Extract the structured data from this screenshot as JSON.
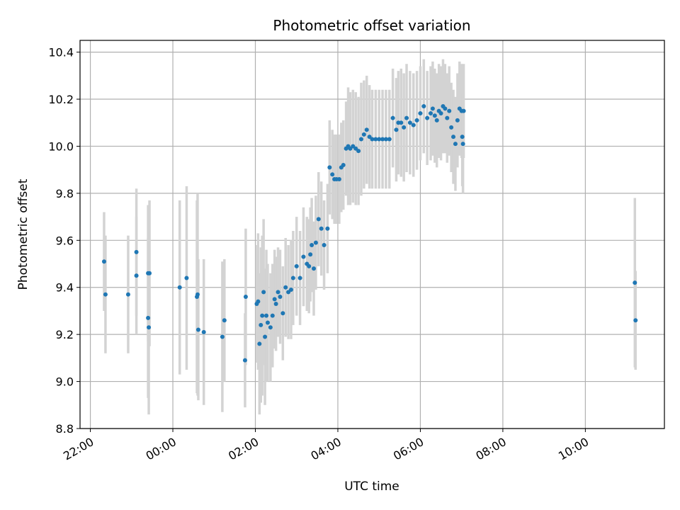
{
  "chart_data": {
    "type": "scatter",
    "title": "Photometric offset variation",
    "xlabel": "UTC time",
    "ylabel": "Photometric offset",
    "x_unit": "hours UTC (values >= 24 are after midnight of next day)",
    "xlim": [
      "21:45",
      "35:55"
    ],
    "ylim": [
      8.8,
      10.45
    ],
    "x_ticks": [
      "22:00",
      "00:00",
      "02:00",
      "04:00",
      "06:00",
      "08:00",
      "10:00"
    ],
    "y_ticks": [
      "8.8",
      "9.0",
      "9.2",
      "9.4",
      "9.6",
      "9.8",
      "10.0",
      "10.2",
      "10.4"
    ],
    "grid": true,
    "legend": "none",
    "colors": {
      "points": "#1f77b4",
      "errorbars": "#d3d3d3",
      "grid": "#b0b0b0"
    },
    "series": [
      {
        "x": [
          "22:20",
          "22:22",
          "22:55",
          "23:07",
          "23:07",
          "23:24",
          "23:24",
          "23:25",
          "23:26",
          "00:10",
          "00:20",
          "00:35",
          "00:36",
          "00:37",
          "00:45",
          "01:12",
          "01:15",
          "01:45",
          "01:46",
          "02:02",
          "02:04",
          "02:06",
          "02:08",
          "02:10",
          "02:12",
          "02:14",
          "02:16",
          "02:18",
          "02:22",
          "02:25",
          "02:28",
          "02:30",
          "02:33",
          "02:36",
          "02:40",
          "02:44",
          "02:48",
          "02:52",
          "02:55",
          "03:00",
          "03:05",
          "03:10",
          "03:15",
          "03:18",
          "03:20",
          "03:22",
          "03:25",
          "03:28",
          "03:32",
          "03:36",
          "03:40",
          "03:45",
          "03:48",
          "03:52",
          "03:55",
          "03:58",
          "04:02",
          "04:05",
          "04:08",
          "04:12",
          "04:15",
          "04:18",
          "04:22",
          "04:26",
          "04:30",
          "04:34",
          "04:38",
          "04:42",
          "04:46",
          "04:50",
          "04:55",
          "05:00",
          "05:05",
          "05:10",
          "05:15",
          "05:20",
          "05:25",
          "05:28",
          "05:32",
          "05:36",
          "05:40",
          "05:45",
          "05:50",
          "05:55",
          "06:00",
          "06:05",
          "06:10",
          "06:15",
          "06:18",
          "06:21",
          "06:24",
          "06:27",
          "06:30",
          "06:33",
          "06:36",
          "06:39",
          "06:42",
          "06:45",
          "06:48",
          "06:51",
          "06:54",
          "06:57",
          "07:00",
          "07:01",
          "07:02",
          "07:03",
          "11:12",
          "11:13"
        ],
        "y": [
          9.51,
          9.37,
          9.37,
          9.45,
          9.55,
          9.46,
          9.27,
          9.23,
          9.46,
          9.4,
          9.44,
          9.36,
          9.37,
          9.22,
          9.21,
          9.19,
          9.26,
          9.09,
          9.36,
          9.33,
          9.34,
          9.16,
          9.24,
          9.28,
          9.38,
          9.19,
          9.28,
          9.25,
          9.23,
          9.28,
          9.35,
          9.33,
          9.38,
          9.36,
          9.29,
          9.4,
          9.38,
          9.39,
          9.44,
          9.49,
          9.44,
          9.53,
          9.5,
          9.49,
          9.54,
          9.58,
          9.48,
          9.59,
          9.69,
          9.65,
          9.58,
          9.65,
          9.91,
          9.88,
          9.86,
          9.86,
          9.86,
          9.91,
          9.92,
          9.99,
          10.0,
          9.99,
          10.0,
          9.99,
          9.98,
          10.03,
          10.05,
          10.07,
          10.04,
          10.03,
          10.03,
          10.03,
          10.03,
          10.03,
          10.03,
          10.12,
          10.07,
          10.1,
          10.1,
          10.08,
          10.12,
          10.1,
          10.09,
          10.11,
          10.14,
          10.17,
          10.12,
          10.14,
          10.16,
          10.13,
          10.11,
          10.15,
          10.14,
          10.17,
          10.16,
          10.12,
          10.15,
          10.08,
          10.04,
          10.01,
          10.11,
          10.16,
          10.15,
          10.04,
          10.01,
          10.15,
          9.42,
          9.26
        ],
        "err": [
          0.21,
          0.25,
          0.25,
          0.25,
          0.27,
          0.29,
          0.34,
          0.37,
          0.31,
          0.37,
          0.39,
          0.41,
          0.43,
          0.3,
          0.31,
          0.32,
          0.26,
          0.2,
          0.29,
          0.25,
          0.29,
          0.3,
          0.33,
          0.34,
          0.31,
          0.29,
          0.28,
          0.25,
          0.23,
          0.22,
          0.21,
          0.2,
          0.19,
          0.2,
          0.2,
          0.21,
          0.2,
          0.21,
          0.2,
          0.21,
          0.2,
          0.21,
          0.2,
          0.2,
          0.2,
          0.2,
          0.2,
          0.2,
          0.2,
          0.2,
          0.19,
          0.19,
          0.2,
          0.19,
          0.19,
          0.19,
          0.19,
          0.19,
          0.19,
          0.2,
          0.25,
          0.24,
          0.24,
          0.24,
          0.23,
          0.24,
          0.23,
          0.23,
          0.22,
          0.21,
          0.21,
          0.21,
          0.21,
          0.21,
          0.21,
          0.21,
          0.22,
          0.22,
          0.23,
          0.23,
          0.23,
          0.22,
          0.22,
          0.21,
          0.2,
          0.2,
          0.2,
          0.2,
          0.2,
          0.2,
          0.2,
          0.2,
          0.2,
          0.2,
          0.19,
          0.19,
          0.19,
          0.19,
          0.2,
          0.2,
          0.2,
          0.2,
          0.2,
          0.21,
          0.21,
          0.2,
          0.36,
          0.21
        ]
      }
    ]
  }
}
